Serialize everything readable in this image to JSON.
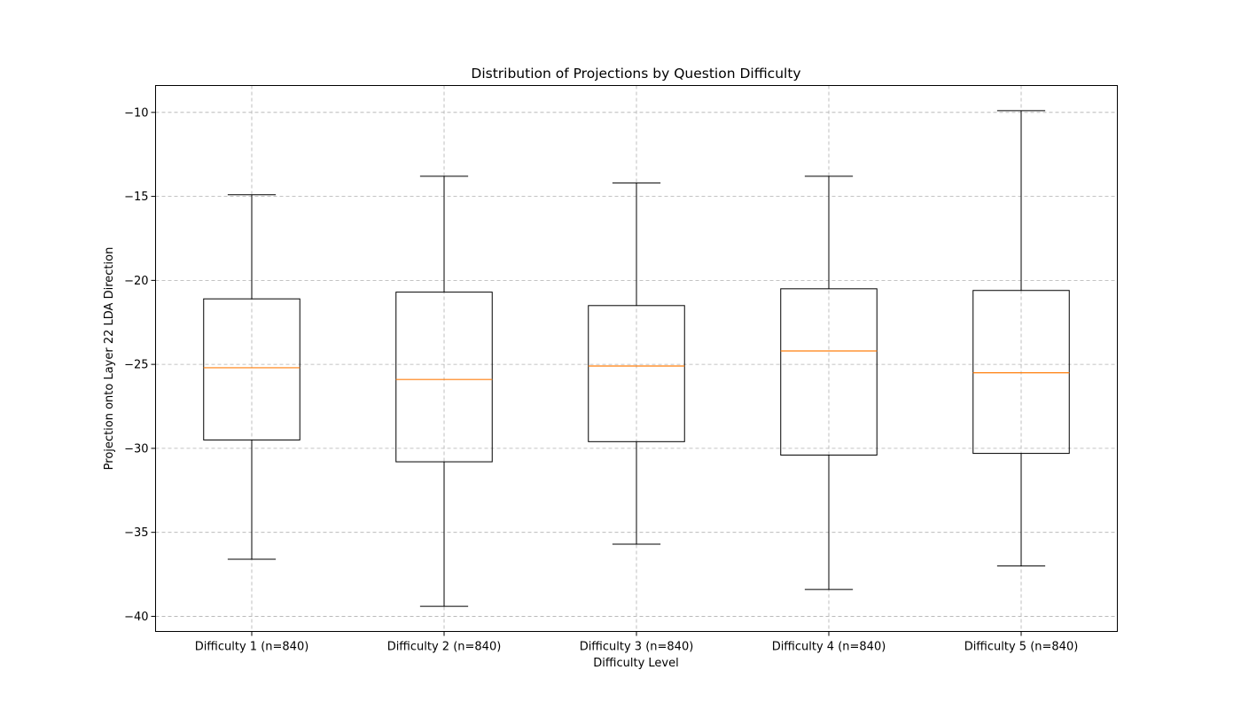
{
  "chart_data": {
    "type": "box",
    "title": "Distribution of Projections by Question Difficulty",
    "xlabel": "Difficulty Level",
    "ylabel": "Projection onto Layer 22 LDA Direction",
    "ylim": [
      -40.9,
      -8.4
    ],
    "yticks": [
      -40,
      -35,
      -30,
      -25,
      -20,
      -15,
      -10
    ],
    "grid": true,
    "colors": {
      "box": "#000000",
      "median": "#ff7f0e",
      "grid": "#b0b0b0"
    },
    "categories": [
      "Difficulty 1 (n=840)",
      "Difficulty 2 (n=840)",
      "Difficulty 3 (n=840)",
      "Difficulty 4 (n=840)",
      "Difficulty 5 (n=840)"
    ],
    "boxes": [
      {
        "whislo": -36.6,
        "q1": -29.5,
        "med": -25.2,
        "q3": -21.1,
        "whishi": -14.9
      },
      {
        "whislo": -39.4,
        "q1": -30.8,
        "med": -25.9,
        "q3": -20.7,
        "whishi": -13.8
      },
      {
        "whislo": -35.7,
        "q1": -29.6,
        "med": -25.1,
        "q3": -21.5,
        "whishi": -14.2
      },
      {
        "whislo": -38.4,
        "q1": -30.4,
        "med": -24.2,
        "q3": -20.5,
        "whishi": -13.8
      },
      {
        "whislo": -37.0,
        "q1": -30.3,
        "med": -25.5,
        "q3": -20.6,
        "whishi": -9.9
      }
    ]
  }
}
